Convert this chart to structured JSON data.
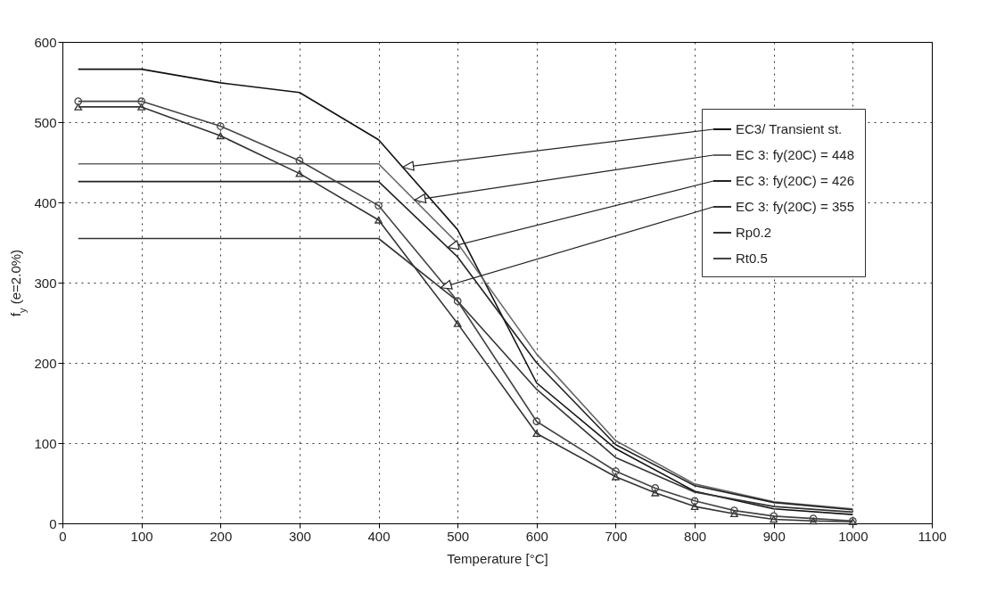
{
  "chart_data": {
    "type": "line",
    "xlabel": "Temperature [°C]",
    "ylabel": "f$_{y}$ (e=2.0%)",
    "xlim": [
      0,
      1100
    ],
    "xticks": [
      0,
      100,
      200,
      300,
      400,
      500,
      600,
      700,
      800,
      900,
      1000,
      1100
    ],
    "ylim": [
      0,
      600
    ],
    "yticks": [
      0,
      100,
      200,
      300,
      400,
      500,
      600
    ],
    "grid": true,
    "legend": "top right",
    "line_style": "solid",
    "series": [
      {
        "name": "EC3/ Transient st.",
        "color": "#111111",
        "marker": "none",
        "x": [
          20,
          100,
          200,
          300,
          400,
          500,
          600,
          700,
          800,
          900,
          1000
        ],
        "values": [
          566,
          566,
          549,
          537,
          478,
          366,
          175,
          93,
          40,
          18,
          11
        ]
      },
      {
        "name": "EC 3: fy(20C) = 448",
        "color": "#666666",
        "marker": "none",
        "x": [
          20,
          400,
          500,
          600,
          700,
          800,
          900,
          1000
        ],
        "values": [
          448,
          448,
          349,
          211,
          103,
          49,
          27,
          18
        ]
      },
      {
        "name": "EC 3: fy(20C) = 426",
        "color": "#222222",
        "marker": "none",
        "x": [
          20,
          400,
          500,
          600,
          700,
          800,
          900,
          1000
        ],
        "values": [
          426,
          426,
          332,
          200,
          98,
          47,
          26,
          17
        ]
      },
      {
        "name": "EC 3: fy(20C) = 355",
        "color": "#333333",
        "marker": "none",
        "x": [
          20,
          400,
          500,
          600,
          700,
          800,
          900,
          1000
        ],
        "values": [
          355,
          355,
          277,
          167,
          82,
          39,
          21,
          14
        ]
      },
      {
        "name": "Rp0.2",
        "color": "#333333",
        "marker": "triangle",
        "x": [
          20,
          100,
          200,
          300,
          400,
          500,
          600,
          700,
          750,
          800,
          850,
          900,
          950,
          1000
        ],
        "values": [
          519,
          519,
          483,
          436,
          378,
          249,
          112,
          58,
          38,
          21,
          12,
          5,
          3,
          2
        ]
      },
      {
        "name": "Rt0.5",
        "color": "#444444",
        "marker": "circle",
        "x": [
          20,
          100,
          200,
          300,
          400,
          500,
          600,
          700,
          750,
          800,
          850,
          900,
          950,
          1000
        ],
        "values": [
          526,
          526,
          495,
          452,
          396,
          277,
          127,
          65,
          44,
          28,
          16,
          9,
          6,
          3
        ]
      }
    ]
  }
}
